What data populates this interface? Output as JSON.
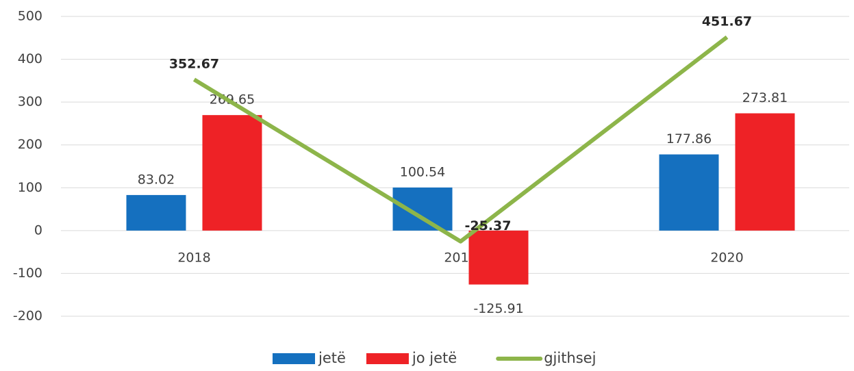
{
  "chart_data": {
    "type": "bar",
    "categories": [
      "2018",
      "2019",
      "2020"
    ],
    "series": [
      {
        "name": "jetë",
        "color": "#1570bf",
        "type": "bar",
        "values": [
          83.02,
          100.54,
          177.86
        ]
      },
      {
        "name": "jo jetë",
        "color": "#ee2226",
        "type": "bar",
        "values": [
          269.65,
          -125.91,
          273.81
        ]
      },
      {
        "name": "gjithsej",
        "color": "#8db54a",
        "type": "line",
        "values": [
          352.67,
          -25.37,
          451.67
        ]
      }
    ],
    "ylim": [
      -200,
      500
    ],
    "yticks": [
      -200,
      -100,
      0,
      100,
      200,
      300,
      400,
      500
    ],
    "grid": true,
    "legend": "bottom"
  }
}
